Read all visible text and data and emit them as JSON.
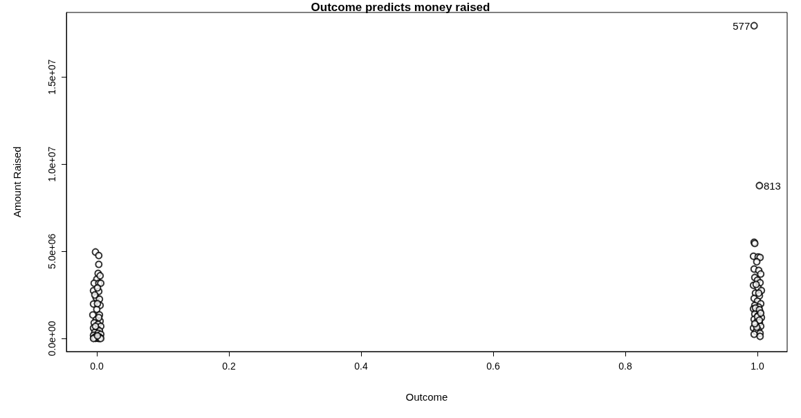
{
  "chart_data": {
    "type": "scatter",
    "title": "Outcome predicts money raised",
    "xlabel": "Outcome",
    "ylabel": "Amount Raised",
    "xlim": [
      -0.046,
      1.045
    ],
    "ylim": [
      -750000,
      18700000
    ],
    "xticks": [
      {
        "value": 0,
        "label": "0.0"
      },
      {
        "value": 0.2,
        "label": "0.2"
      },
      {
        "value": 0.4,
        "label": "0.4"
      },
      {
        "value": 0.6,
        "label": "0.6"
      },
      {
        "value": 0.8,
        "label": "0.8"
      },
      {
        "value": 1,
        "label": "1.0"
      }
    ],
    "yticks": [
      {
        "value": 0,
        "label": "0.0e+00"
      },
      {
        "value": 5000000,
        "label": "5.0e+06"
      },
      {
        "value": 10000000,
        "label": "1.0e+07"
      },
      {
        "value": 15000000,
        "label": "1.5e+07"
      }
    ],
    "grid": false,
    "marker": "circle",
    "series": [
      {
        "color": "#000000",
        "x": [
          -0.002,
          0.003,
          0.003,
          0.002,
          0.0,
          -0.004,
          0.003,
          0.006,
          -0.005,
          0.003,
          -0.001,
          0.004,
          -0.005,
          0.005,
          0.0,
          -0.006,
          0.004,
          -0.001,
          0.005,
          -0.004,
          0.002,
          0.006,
          -0.005,
          0.001,
          0.004,
          -0.003,
          0.002,
          0.006,
          -0.005,
          -0.001,
          0.003,
          0.005,
          -0.004,
          0.0,
          0.002,
          -0.002,
          0.004,
          0.006,
          -0.005,
          0.001,
          -0.002,
          0.003,
          0.001,
          -0.003,
          0.001,
          0.005,
          0.995,
          0.996,
          0.994,
          1.001,
          1.004,
          0.999,
          0.995,
          1.002,
          1.005,
          0.996,
          1.0,
          1.004,
          0.994,
          1.001,
          1.006,
          0.997,
          1.003,
          0.995,
          1.0,
          1.005,
          0.996,
          1.002,
          0.994,
          0.999,
          1.004,
          0.996,
          1.001,
          1.006,
          0.995,
          1.0,
          1.003,
          0.997,
          1.005,
          0.994,
          1.001,
          0.998,
          1.004,
          0.995,
          1.004,
          1.0,
          0.997,
          1.003,
          0.999,
          1.002,
          0.998,
          1.003,
          0.996,
          1.005,
          0.995,
          1.003
        ],
        "values": [
          4960000,
          4760000,
          4250000,
          3730000,
          3400000,
          3170000,
          3170000,
          3170000,
          2740000,
          2700000,
          2340000,
          2260000,
          1980000,
          1900000,
          1670000,
          1350000,
          1350000,
          1070000,
          1000000,
          900000,
          820000,
          700000,
          600000,
          520000,
          440000,
          360000,
          300000,
          240000,
          180000,
          130000,
          90000,
          50000,
          30000,
          20000,
          10000,
          10000,
          0,
          0,
          0,
          150000,
          700000,
          1200000,
          2000000,
          2500000,
          2900000,
          3600000,
          5520000,
          5450000,
          4720000,
          4680000,
          4650000,
          4400000,
          3980000,
          3900000,
          3700000,
          3500000,
          3350000,
          3200000,
          3050000,
          2900000,
          2750000,
          2600000,
          2450000,
          2300000,
          2150000,
          2000000,
          1900000,
          1800000,
          1700000,
          1600000,
          1500000,
          1400000,
          1300000,
          1200000,
          1100000,
          1000000,
          900000,
          800000,
          700000,
          600000,
          500000,
          400000,
          300000,
          240000,
          120000,
          1250000,
          1750000,
          1050000,
          650000,
          2600000,
          3100000,
          1650000,
          850000,
          1450000,
          17940000,
          8770000
        ]
      }
    ],
    "annotations": [
      {
        "text": "577",
        "x": 0.995,
        "y": 17940000
      },
      {
        "text": "813",
        "x": 1.003,
        "y": 8770000
      }
    ]
  }
}
